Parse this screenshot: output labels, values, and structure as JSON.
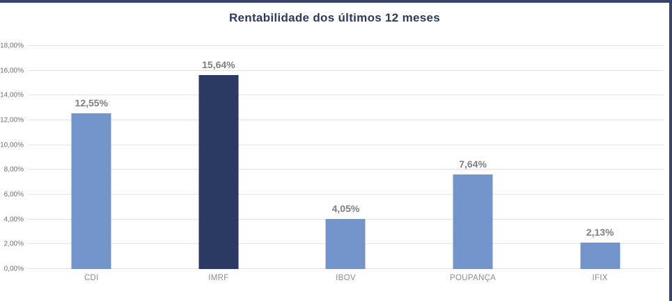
{
  "title": "Rentabilidade dos últimos 12 meses",
  "colors": {
    "frame_border": "#38436B",
    "title_text": "#2E3A59",
    "bar_default": "#7495CB",
    "bar_highlight": "#2B3A64",
    "gridline": "#E4E4E6",
    "ytick_label": "#6F6F6F",
    "xtick_label": "#8C8C8C",
    "value_label": "#7F7F7F"
  },
  "chart_data": {
    "type": "bar",
    "title": "Rentabilidade dos últimos 12 meses",
    "categories": [
      "CDI",
      "IMRF",
      "IBOV",
      "POUPANÇA",
      "IFIX"
    ],
    "values": [
      12.55,
      15.64,
      4.05,
      7.64,
      2.13
    ],
    "value_labels": [
      "12,55%",
      "15,64%",
      "4,05%",
      "7,64%",
      "2,13%"
    ],
    "bar_colors": [
      "#7495CB",
      "#2B3A64",
      "#7495CB",
      "#7495CB",
      "#7495CB"
    ],
    "xlabel": "",
    "ylabel": "",
    "ylim": [
      0,
      18
    ],
    "ytick_step": 2,
    "ytick_labels": [
      "0,00%",
      "2,00%",
      "4,00%",
      "6,00%",
      "8,00%",
      "10,00%",
      "12,00%",
      "14,00%",
      "16,00%",
      "18,00%"
    ],
    "grid": true,
    "legend": false
  }
}
